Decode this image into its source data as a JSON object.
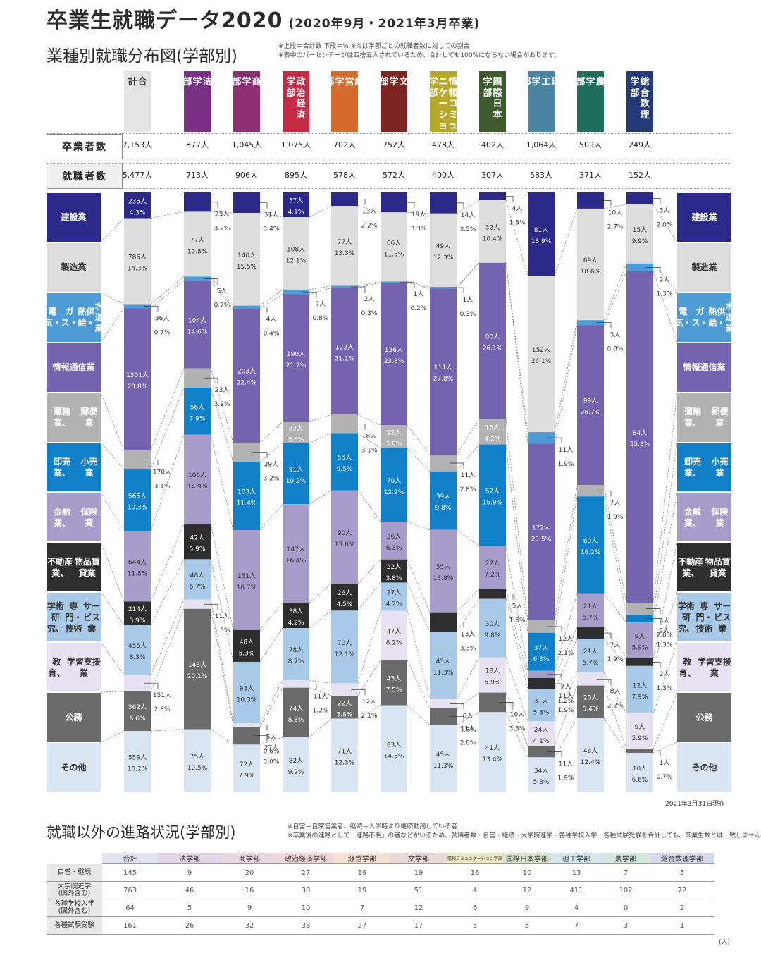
{
  "title": "卒業生就職データ2020",
  "title_sub": "(2020年9月・2021年3月卒業)",
  "section1_title": "業種別就職分布図(学部別)",
  "notes": [
    "※上段＝合計数 下段＝% ※%は学部ごとの就職者数に対しての割合",
    "※表中のパーセンテージは四捨五入されているため、合計しても100%にならない場合があります。"
  ],
  "row_labels": {
    "graduates": "卒業者数",
    "employed": "就職者数"
  },
  "date_note": "2021年3月31日現在",
  "section2_title": "就職以外の進路状況(学部別)",
  "section2_notes": [
    "※自営＝自家営業者、継続＝入学時より継続勤務している者",
    "※卒業後の進路として「進路不明」の者などがいるため、就職者数・自営・継続・大学院進学・各種学校入学・各種試験受験を合計しても、卒業生数とは一致しません。"
  ],
  "unit_note": "(人)",
  "colors": {
    "construction": "#2b2a8a",
    "manufacturing": "#dedede",
    "utility": "#4e9bd5",
    "it": "#7464b0",
    "transport": "#b2b2b2",
    "wholesale": "#1080c8",
    "finance": "#a69dcb",
    "realestate": "#2e2e2e",
    "research": "#a9c9e8",
    "education": "#e7e2f1",
    "public": "#6b6b6b",
    "other": "#dae5f3"
  },
  "chart_data": {
    "type": "bar",
    "stacked": true,
    "industries": [
      {
        "key": "construction",
        "label": "建設業"
      },
      {
        "key": "manufacturing",
        "label": "製造業"
      },
      {
        "key": "utility",
        "label": "電気・ガス・熱供給・水道業"
      },
      {
        "key": "it",
        "label": "情報通信業"
      },
      {
        "key": "transport",
        "label": "運輸業、郵便業"
      },
      {
        "key": "wholesale",
        "label": "卸売業、小売業"
      },
      {
        "key": "finance",
        "label": "金融業、保険業"
      },
      {
        "key": "realestate",
        "label": "不動産業、物品賃貸業"
      },
      {
        "key": "research",
        "label": "学術研究、専門・技術サービス業"
      },
      {
        "key": "education",
        "label": "教育、学習支援業"
      },
      {
        "key": "public",
        "label": "公務"
      },
      {
        "key": "other",
        "label": "その他"
      }
    ],
    "industry_label_lines": [
      [
        "建設業"
      ],
      [
        "製造業"
      ],
      [
        "電気・",
        "ガス・",
        "熱供給・",
        "水道業"
      ],
      [
        "情報通信業"
      ],
      [
        "運輸業、",
        "郵便業"
      ],
      [
        "卸売業、",
        "小売業"
      ],
      [
        "金融業、",
        "保険業"
      ],
      [
        "不動産業、",
        "物品賃貸業"
      ],
      [
        "学術研究、",
        "専門・技術",
        "サービス業"
      ],
      [
        "教育、",
        "学習支援業"
      ],
      [
        "公務"
      ],
      [
        "その他"
      ]
    ],
    "columns": [
      {
        "name": "合計",
        "head_lines": [
          "合",
          "計"
        ],
        "color": "#e4e4e4",
        "text": "#333",
        "graduates": "7,153人",
        "employed": "5,477人",
        "counts": [
          235,
          785,
          36,
          1301,
          170,
          565,
          644,
          214,
          455,
          151,
          362,
          559
        ],
        "pcts": [
          "4.3%",
          "14.3%",
          "0.7%",
          "23.8%",
          "3.1%",
          "10.3%",
          "11.8%",
          "3.9%",
          "8.3%",
          "2.8%",
          "6.6%",
          "10.2%"
        ]
      },
      {
        "name": "法学部",
        "head_lines": [
          "法",
          "学",
          "部"
        ],
        "color": "#7a3185",
        "text": "#fff",
        "graduates": "877人",
        "employed": "713人",
        "counts": [
          23,
          77,
          5,
          104,
          23,
          56,
          106,
          42,
          48,
          11,
          143,
          75
        ],
        "pcts": [
          "3.2%",
          "10.8%",
          "0.7%",
          "14.6%",
          "3.2%",
          "7.9%",
          "14.9%",
          "5.9%",
          "6.7%",
          "1.5%",
          "20.1%",
          "10.5%"
        ]
      },
      {
        "name": "商学部",
        "head_lines": [
          "商",
          "学",
          "部"
        ],
        "color": "#8d2d72",
        "text": "#fff",
        "graduates": "1,045人",
        "employed": "906人",
        "counts": [
          31,
          140,
          4,
          203,
          29,
          103,
          151,
          48,
          93,
          5,
          27,
          72
        ],
        "pcts": [
          "3.4%",
          "15.5%",
          "0.4%",
          "22.4%",
          "3.2%",
          "11.4%",
          "16.7%",
          "5.3%",
          "10.3%",
          "0.6%",
          "3.0%",
          "7.9%"
        ]
      },
      {
        "name": "政治経済学部",
        "head_lines": [
          "政治経済",
          "学部"
        ],
        "color": "#c32c44",
        "text": "#fff",
        "graduates": "1,075人",
        "employed": "895人",
        "counts": [
          37,
          108,
          7,
          190,
          32,
          91,
          147,
          38,
          78,
          11,
          74,
          82
        ],
        "pcts": [
          "4.1%",
          "12.1%",
          "0.8%",
          "21.2%",
          "3.6%",
          "10.2%",
          "16.4%",
          "4.2%",
          "8.7%",
          "1.2%",
          "8.3%",
          "9.2%"
        ]
      },
      {
        "name": "経営学部",
        "head_lines": [
          "経",
          "営",
          "学",
          "部"
        ],
        "color": "#d56b2c",
        "text": "#fff",
        "graduates": "702人",
        "employed": "578人",
        "counts": [
          13,
          77,
          2,
          122,
          18,
          55,
          90,
          26,
          70,
          12,
          22,
          71
        ],
        "pcts": [
          "2.2%",
          "13.3%",
          "0.3%",
          "21.1%",
          "3.1%",
          "9.5%",
          "15.6%",
          "4.5%",
          "12.1%",
          "2.1%",
          "3.8%",
          "12.3%"
        ]
      },
      {
        "name": "文学部",
        "head_lines": [
          "文",
          "学",
          "部"
        ],
        "color": "#7d2523",
        "text": "#fff",
        "graduates": "752人",
        "employed": "572人",
        "counts": [
          19,
          66,
          1,
          136,
          22,
          70,
          36,
          22,
          27,
          47,
          43,
          83
        ],
        "pcts": [
          "3.3%",
          "11.5%",
          "0.2%",
          "23.8%",
          "3.8%",
          "12.2%",
          "6.3%",
          "3.8%",
          "4.7%",
          "8.2%",
          "7.5%",
          "14.5%"
        ]
      },
      {
        "name": "情報コミュニケーション学部",
        "head_lines": [
          "情報コミュ",
          "ニケーション",
          "学部"
        ],
        "color": "#b5a82b",
        "text": "#fff",
        "graduates": "478人",
        "employed": "400人",
        "counts": [
          14,
          49,
          1,
          111,
          11,
          39,
          55,
          13,
          45,
          6,
          11,
          45
        ],
        "pcts": [
          "3.5%",
          "12.3%",
          "0.3%",
          "27.8%",
          "2.8%",
          "9.8%",
          "13.8%",
          "3.3%",
          "11.3%",
          "1.5%",
          "2.8%",
          "11.3%"
        ]
      },
      {
        "name": "国際日本学部",
        "head_lines": [
          "国際日本",
          "学部"
        ],
        "color": "#3e5b2d",
        "text": "#fff",
        "graduates": "402人",
        "employed": "307人",
        "counts": [
          4,
          32,
          0,
          80,
          13,
          52,
          22,
          5,
          30,
          18,
          10,
          41
        ],
        "pcts": [
          "1.3%",
          "10.4%",
          "",
          "26.1%",
          "4.2%",
          "16.9%",
          "7.2%",
          "1.6%",
          "9.8%",
          "5.9%",
          "3.3%",
          "13.4%"
        ]
      },
      {
        "name": "理工学部",
        "head_lines": [
          "理",
          "工",
          "学",
          "部"
        ],
        "color": "#4a86a1",
        "text": "#fff",
        "graduates": "1,064人",
        "employed": "583人",
        "counts": [
          81,
          152,
          11,
          172,
          12,
          37,
          7,
          11,
          31,
          24,
          11,
          34
        ],
        "pcts": [
          "13.9%",
          "26.1%",
          "1.9%",
          "29.5%",
          "2.1%",
          "6.3%",
          "1.2%",
          "1.9%",
          "5.3%",
          "4.1%",
          "1.9%",
          "5.8%"
        ]
      },
      {
        "name": "農学部",
        "head_lines": [
          "農",
          "学",
          "部"
        ],
        "color": "#1f6e5c",
        "text": "#fff",
        "graduates": "509人",
        "employed": "371人",
        "counts": [
          10,
          69,
          3,
          99,
          7,
          60,
          21,
          7,
          21,
          8,
          20,
          46
        ],
        "pcts": [
          "2.7%",
          "18.6%",
          "0.8%",
          "26.7%",
          "1.9%",
          "16.2%",
          "5.7%",
          "1.9%",
          "5.7%",
          "2.2%",
          "5.4%",
          "12.4%"
        ]
      },
      {
        "name": "総合数理学部",
        "head_lines": [
          "総合数理",
          "学部"
        ],
        "color": "#243a78",
        "text": "#fff",
        "graduates": "249人",
        "employed": "152人",
        "counts": [
          3,
          15,
          2,
          84,
          3,
          2,
          9,
          2,
          12,
          9,
          1,
          10
        ],
        "pcts": [
          "2.0%",
          "9.9%",
          "1.3%",
          "55.3%",
          "2.0%",
          "1.3%",
          "5.9%",
          "1.3%",
          "7.9%",
          "5.9%",
          "0.7%",
          "6.6%"
        ]
      }
    ]
  },
  "table2": {
    "headers": [
      "合計",
      "法学部",
      "商学部",
      "政治経済学部",
      "経営学部",
      "文学部",
      "情報コミュニケーション学部",
      "国際日本学部",
      "理工学部",
      "農学部",
      "総合数理学部"
    ],
    "header_colors": [
      "#e4e3f1",
      "#e2d5e6",
      "#e8d6e1",
      "#f2d6d8",
      "#f7e2d3",
      "#e7d7d5",
      "#ece9c9",
      "#d8e2cf",
      "#d8e6ee",
      "#d4e6dd",
      "#d5d9ec"
    ],
    "rows": [
      {
        "label": "自営・継続",
        "values": [
          "145",
          "9",
          "20",
          "27",
          "19",
          "19",
          "16",
          "10",
          "13",
          "7",
          "5"
        ]
      },
      {
        "label": "大学院進学(国外含む)",
        "values": [
          "763",
          "46",
          "16",
          "30",
          "19",
          "51",
          "4",
          "12",
          "411",
          "102",
          "72"
        ]
      },
      {
        "label": "各種学校入学(国外含む)",
        "values": [
          "64",
          "5",
          "9",
          "10",
          "7",
          "12",
          "6",
          "9",
          "4",
          "0",
          "2"
        ]
      },
      {
        "label": "各種試験受験",
        "values": [
          "161",
          "26",
          "32",
          "38",
          "27",
          "17",
          "5",
          "5",
          "7",
          "3",
          "1"
        ]
      }
    ]
  }
}
